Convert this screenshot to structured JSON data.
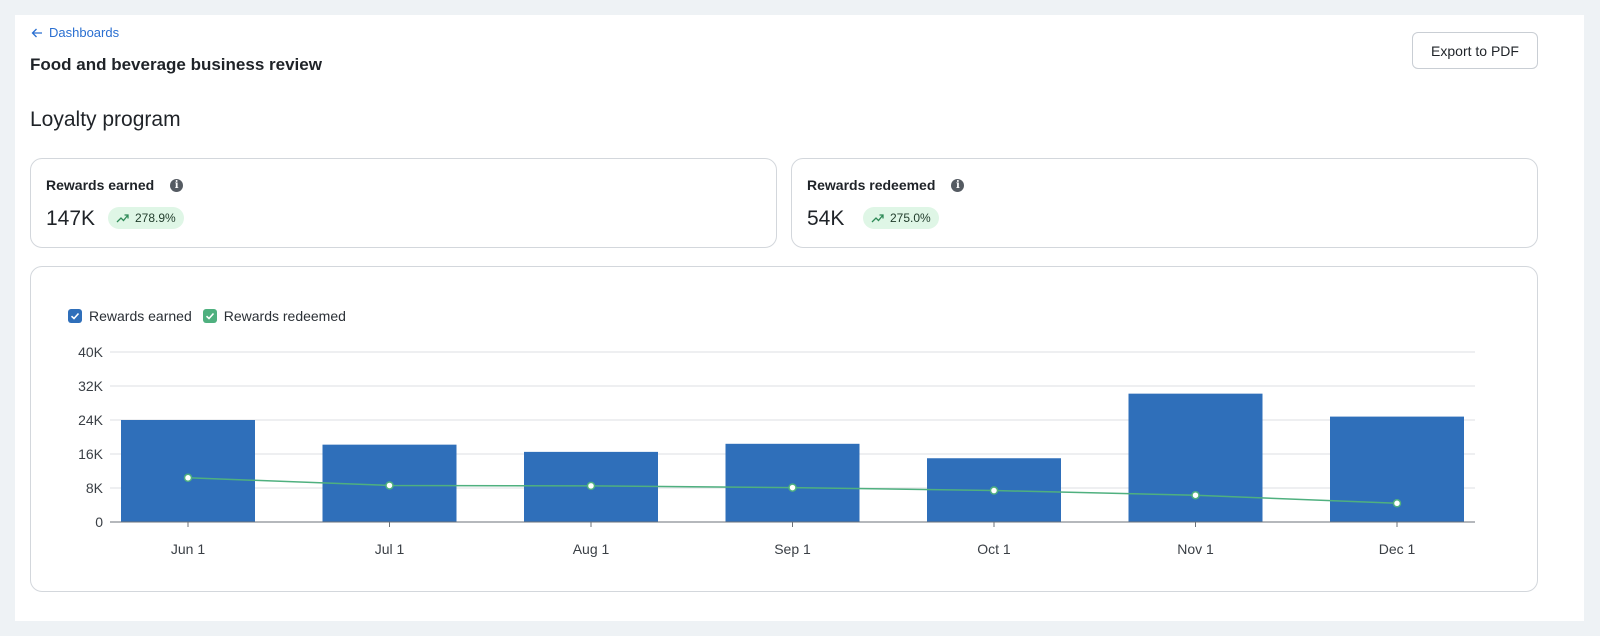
{
  "header": {
    "back_label": "Dashboards",
    "title": "Food and beverage business review",
    "export_label": "Export to PDF"
  },
  "section": {
    "title": "Loyalty program"
  },
  "kpis": [
    {
      "label": "Rewards earned",
      "value": "147K",
      "delta": "278.9%",
      "icon": "info-icon",
      "trend_icon": "trend-up-icon"
    },
    {
      "label": "Rewards redeemed",
      "value": "54K",
      "delta": "275.0%",
      "icon": "info-icon",
      "trend_icon": "trend-up-icon"
    }
  ],
  "colors": {
    "earned": "#2f6fba",
    "redeemed": "#4fb07f",
    "badge_bg": "#dff6e6",
    "link": "#2a6fd1"
  },
  "chart_data": {
    "type": "bar",
    "categories": [
      "Jun 1",
      "Jul 1",
      "Aug 1",
      "Sep 1",
      "Oct 1",
      "Nov 1",
      "Dec 1"
    ],
    "series": [
      {
        "name": "Rewards earned",
        "type": "bar",
        "values": [
          24000,
          18200,
          16500,
          18400,
          15000,
          30200,
          24800
        ]
      },
      {
        "name": "Rewards redeemed",
        "type": "line",
        "values": [
          10400,
          8600,
          8500,
          8100,
          7400,
          6300,
          4400
        ]
      }
    ],
    "yticks": [
      "0",
      "8K",
      "16K",
      "24K",
      "32K",
      "40K"
    ],
    "ylim": [
      0,
      40000
    ],
    "grid": true,
    "legend": "top-left",
    "legend_checked": [
      true,
      true
    ]
  }
}
